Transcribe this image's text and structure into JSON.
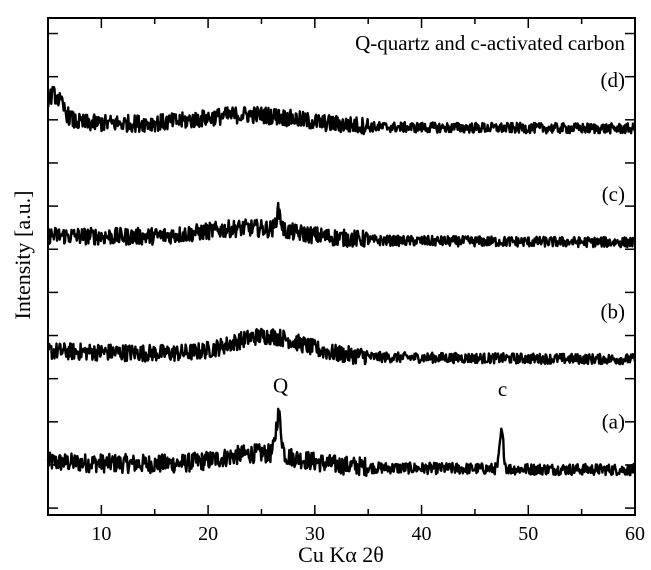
{
  "chart_data": {
    "type": "line",
    "title": "Q-quartz and c-activated carbon",
    "xlabel": "Cu Kα 2θ",
    "ylabel": "Intensity [a.u.]",
    "xlim": [
      5,
      60
    ],
    "xticks": [
      10,
      20,
      30,
      40,
      50,
      60
    ],
    "y_tick_labels_shown": false,
    "grid": false,
    "series": [
      {
        "name": "(a)",
        "offset": 0,
        "baseline": 1.0,
        "noise": 0.55,
        "humps": [
          {
            "center": 25,
            "width": 5,
            "height": 0.35
          }
        ],
        "peaks": [
          {
            "x": 26.6,
            "height": 1.15,
            "width": 0.35,
            "label": "Q"
          },
          {
            "x": 47.5,
            "height": 1.05,
            "width": 0.25,
            "label": "c"
          }
        ]
      },
      {
        "name": "(b)",
        "offset": 3.2,
        "baseline": 1.1,
        "noise": 0.5,
        "humps": [
          {
            "center": 25.5,
            "width": 4.5,
            "height": 0.55
          }
        ],
        "peaks": []
      },
      {
        "name": "(c)",
        "offset": 6.6,
        "baseline": 0.9,
        "noise": 0.5,
        "humps": [
          {
            "center": 24,
            "width": 6,
            "height": 0.3
          }
        ],
        "peaks": [
          {
            "x": 26.6,
            "height": 0.55,
            "width": 0.3
          }
        ]
      },
      {
        "name": "(d)",
        "offset": 9.9,
        "baseline": 0.8,
        "noise": 0.5,
        "humps": [
          {
            "center": 24,
            "width": 6,
            "height": 0.3
          },
          {
            "center": 5.5,
            "width": 1.2,
            "height": 0.8
          }
        ],
        "peaks": []
      }
    ],
    "ylim": [
      -1.2,
      13.2
    ],
    "annotations": [
      "Q",
      "c"
    ]
  }
}
